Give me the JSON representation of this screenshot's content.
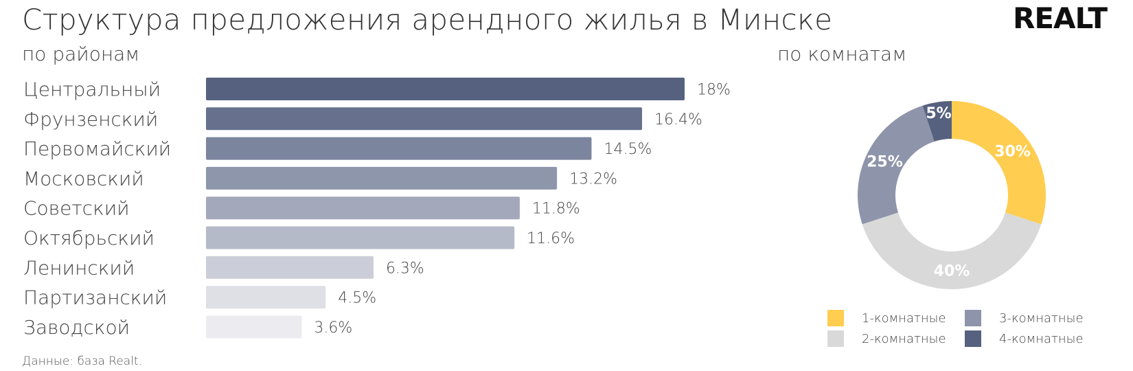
{
  "header": {
    "title": "Структура предложения арендного жилья в Минске",
    "logo_text": "REALT"
  },
  "subtitles": {
    "districts": "по районам",
    "rooms": "по комнатам"
  },
  "footer": {
    "source": "Данные: база Realt."
  },
  "chart_data": [
    {
      "type": "bar",
      "orientation": "horizontal",
      "categories": [
        "Центральный",
        "Фрунзенский",
        "Первомайский",
        "Московский",
        "Советский",
        "Октябрьский",
        "Ленинский",
        "Партизанский",
        "Заводской"
      ],
      "values": [
        18,
        16.4,
        14.5,
        13.2,
        11.8,
        11.6,
        6.3,
        4.5,
        3.6
      ],
      "value_labels": [
        "18%",
        "16.4%",
        "14.5%",
        "13.2%",
        "11.8%",
        "11.6%",
        "6.3%",
        "4.5%",
        "3.6%"
      ],
      "unit": "%",
      "bar_colors": [
        "#56617f",
        "#67718d",
        "#7c859e",
        "#8e96ab",
        "#a3a9ba",
        "#b5bac8",
        "#cbced8",
        "#dfe0e6",
        "#ecebf0"
      ],
      "grid": false
    },
    {
      "type": "pie",
      "donut": true,
      "categories": [
        "1-комнатные",
        "2-комнатные",
        "3-комнатные",
        "4-комнатные"
      ],
      "values": [
        30,
        40,
        25,
        5
      ],
      "value_labels": [
        "30%",
        "40%",
        "25%",
        "5%"
      ],
      "colors": [
        "#ffcd4f",
        "#d9d9d9",
        "#8e94aa",
        "#56617f"
      ],
      "legend_position": "bottom"
    }
  ]
}
